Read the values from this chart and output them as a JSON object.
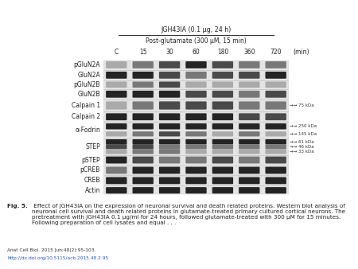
{
  "title_line1": "JGH43IA (0.1 μg, 24 h)",
  "title_line2": "Post-glutamate (300 μM, 15 min)",
  "col_labels": [
    "C",
    "15",
    "30",
    "60",
    "180",
    "360",
    "720",
    "(min)"
  ],
  "row_labels": [
    "pGluN2A",
    "GluN2A",
    "pGluN2B",
    "GluN2B",
    "Calpain 1",
    "Calpain 2",
    "α-Fodrin",
    "STEP",
    "pSTEP",
    "pCREB",
    "CREB",
    "Actin"
  ],
  "figure_caption_bold": "Fig. 5.",
  "figure_caption_rest": " Effect of JGH43IA on the expression of neuronal survival and death related proteins. Western blot analysis of neuronal cell survival and death related proteins in glutamate-treated primary cultured cortical neurons. The pretreatment with JGH43IA 0.1 μg/ml for 24 hours, followed glutamate-treated with 300 μM for 15 minutes. Following preparation of cell lysates and equal . . .",
  "journal_line": "Anat Cell Biol. 2015 Jun;48(2):95-103.",
  "doi_line": "http://dx.doi.org/10.5115/acb.2015.48.2.95",
  "bg_color": "#ffffff",
  "n_cols": 7,
  "n_rows": 12,
  "side_annotations": {
    "Calpain 1": [
      "→→ 75 kDa"
    ],
    "α-Fodrin": [
      "→→ 250 kDa",
      "→→ 145 kDa"
    ],
    "STEP": [
      "→→ 61 kDa",
      "→→ 46 kDa",
      "→→ 33 kDa"
    ]
  }
}
